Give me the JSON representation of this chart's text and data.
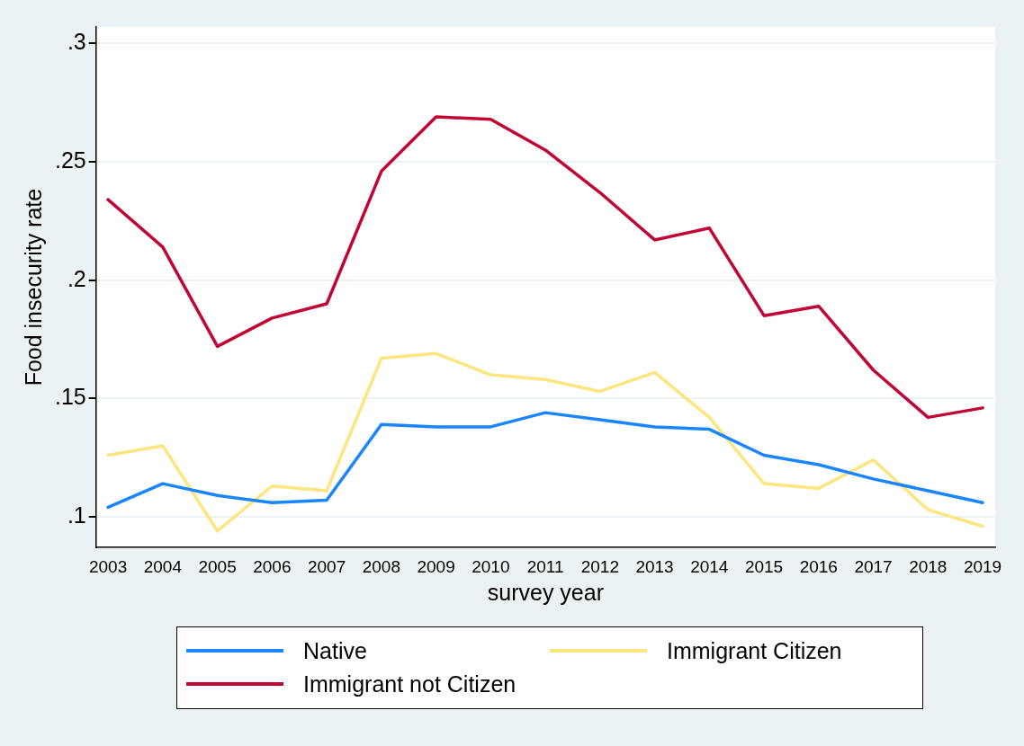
{
  "chart_data": {
    "type": "line",
    "xlabel": "survey year",
    "ylabel": "Food insecurity rate",
    "x": [
      2003,
      2004,
      2005,
      2006,
      2007,
      2008,
      2009,
      2010,
      2011,
      2012,
      2013,
      2014,
      2015,
      2016,
      2017,
      2018,
      2019
    ],
    "xlim": [
      2002.78,
      2019.23
    ],
    "xticks": [
      2003,
      2004,
      2005,
      2006,
      2007,
      2008,
      2009,
      2010,
      2011,
      2012,
      2013,
      2014,
      2015,
      2016,
      2017,
      2018,
      2019
    ],
    "ylim": [
      0.087,
      0.307
    ],
    "yticks": [
      {
        "value": 0.1,
        "label": ".1"
      },
      {
        "value": 0.15,
        "label": ".15"
      },
      {
        "value": 0.2,
        "label": ".2"
      },
      {
        "value": 0.25,
        "label": ".25"
      },
      {
        "value": 0.3,
        "label": ".3"
      }
    ],
    "grid": "y",
    "legend": "bottom",
    "marker": "none",
    "line_style": "solid",
    "series": [
      {
        "name": "Native",
        "color": "#1a85ff",
        "values": [
          0.104,
          0.114,
          0.109,
          0.106,
          0.107,
          0.139,
          0.138,
          0.138,
          0.144,
          0.141,
          0.138,
          0.137,
          0.126,
          0.122,
          0.116,
          0.111,
          0.106
        ]
      },
      {
        "name": "Immigrant Citizen",
        "color": "#fde57f",
        "values": [
          0.126,
          0.13,
          0.094,
          0.113,
          0.111,
          0.167,
          0.169,
          0.16,
          0.158,
          0.153,
          0.161,
          0.142,
          0.114,
          0.112,
          0.124,
          0.103,
          0.096
        ]
      },
      {
        "name": "Immigrant not Citizen",
        "color": "#c10534",
        "values": [
          0.234,
          0.214,
          0.172,
          0.184,
          0.19,
          0.246,
          0.269,
          0.268,
          0.255,
          0.237,
          0.217,
          0.222,
          0.185,
          0.189,
          0.162,
          0.142,
          0.146
        ]
      }
    ]
  }
}
